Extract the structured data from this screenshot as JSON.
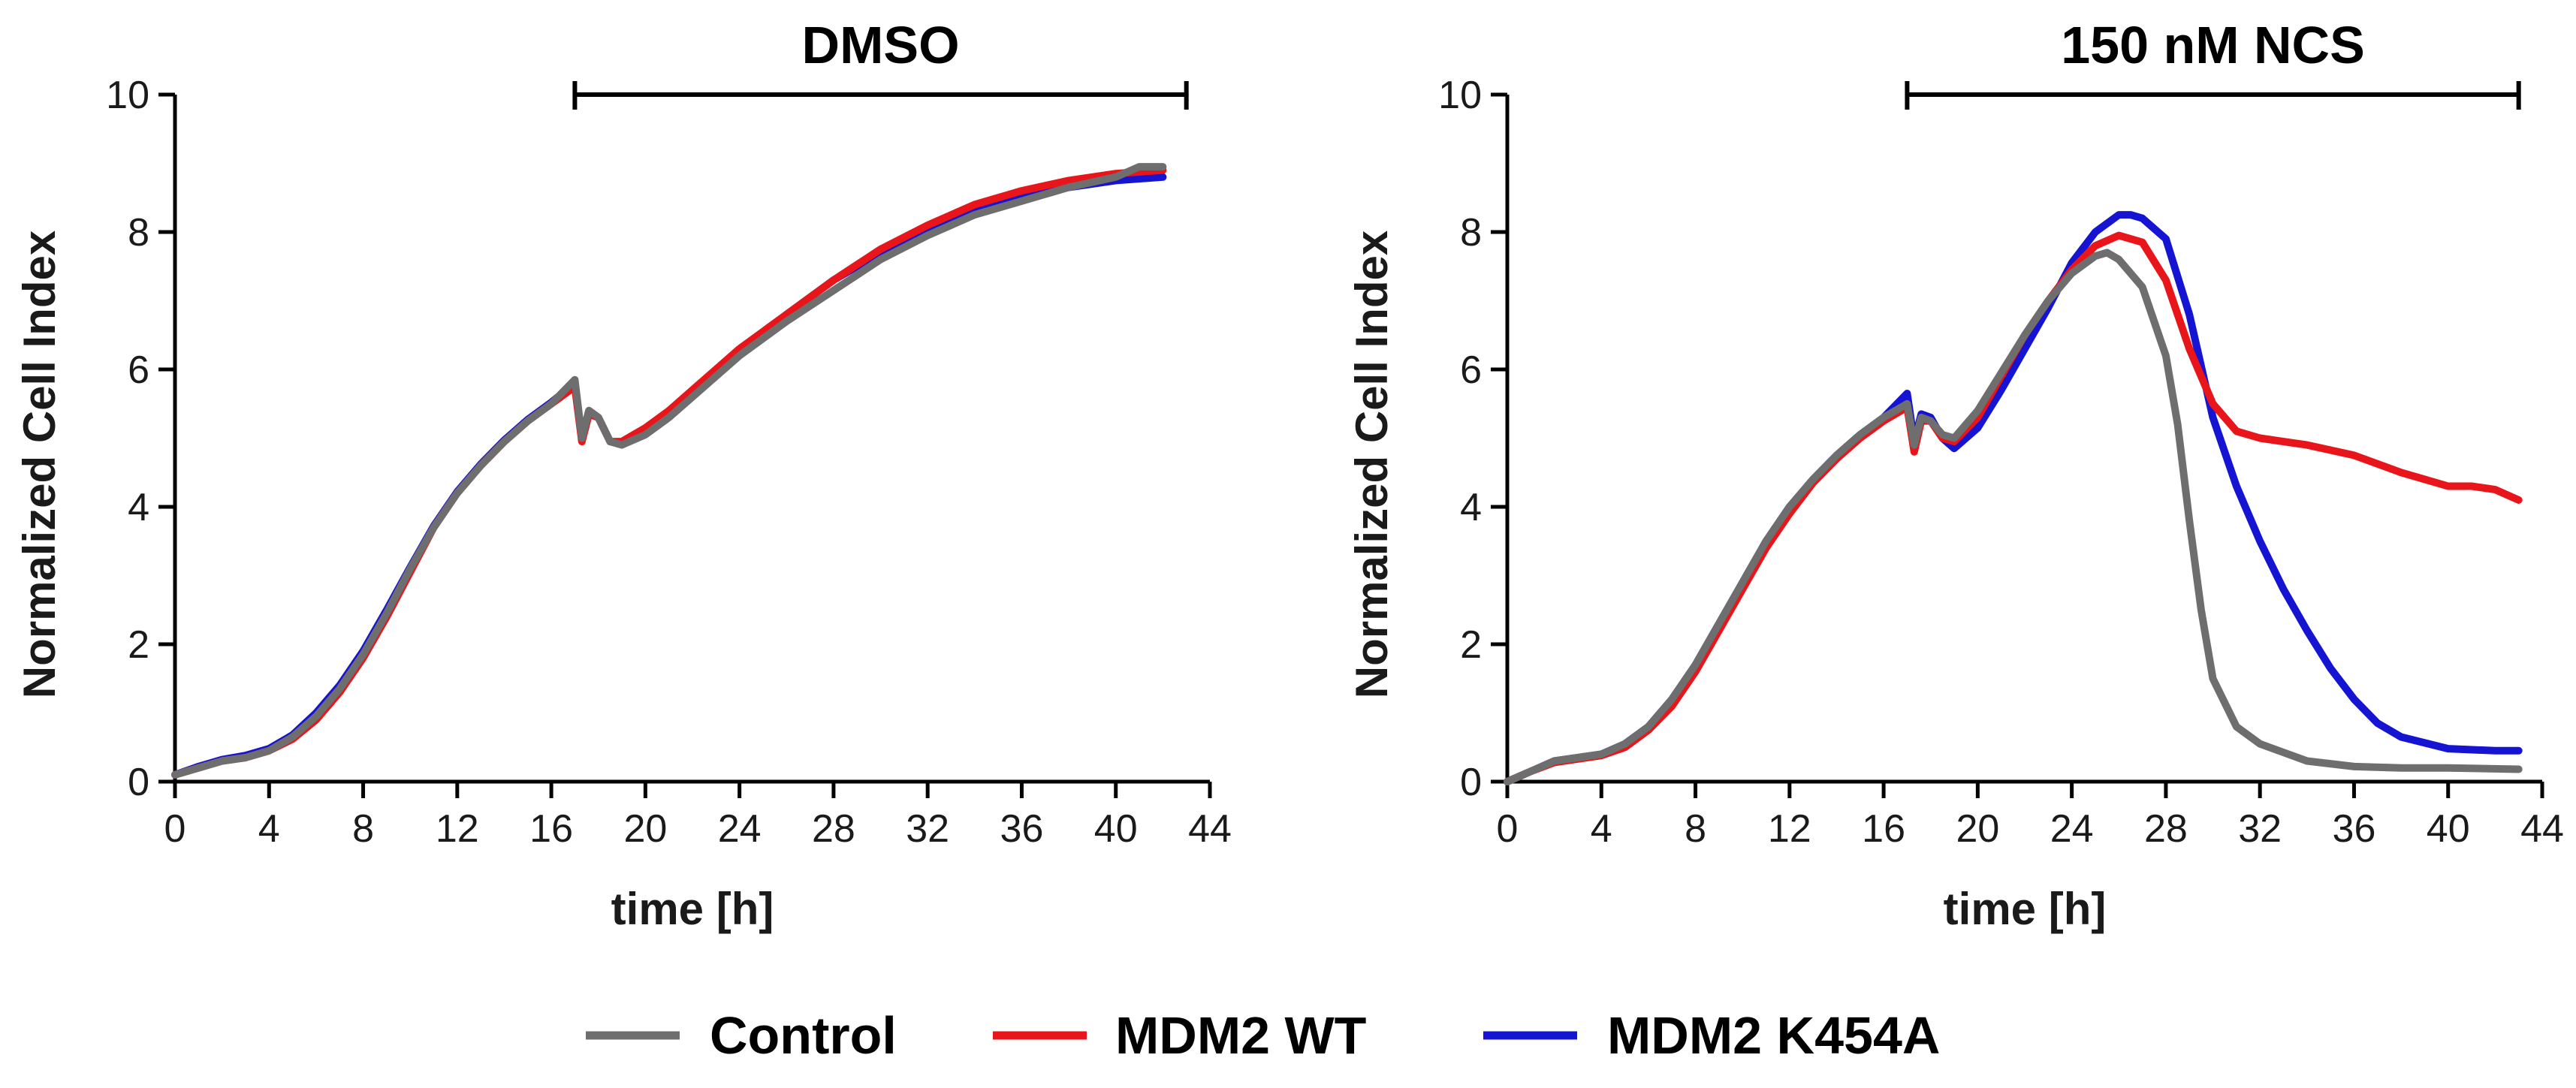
{
  "chart_data": [
    {
      "type": "line",
      "title": "DMSO",
      "xlabel": "time [h]",
      "ylabel": "Normalized Cell Index",
      "xlim": [
        0,
        44
      ],
      "ylim": [
        0,
        10
      ],
      "x_ticks": [
        0,
        4,
        8,
        12,
        16,
        20,
        24,
        28,
        32,
        36,
        40,
        44
      ],
      "y_ticks": [
        0,
        2,
        4,
        6,
        8,
        10
      ],
      "bracket": [
        17,
        43
      ],
      "grid": false,
      "series": [
        {
          "name": "Control",
          "color": "#6e6e6e",
          "points": [
            [
              0,
              0.1
            ],
            [
              1,
              0.2
            ],
            [
              2,
              0.3
            ],
            [
              3,
              0.35
            ],
            [
              4,
              0.45
            ],
            [
              5,
              0.65
            ],
            [
              6,
              0.95
            ],
            [
              7,
              1.35
            ],
            [
              8,
              1.85
            ],
            [
              9,
              2.45
            ],
            [
              10,
              3.1
            ],
            [
              11,
              3.7
            ],
            [
              12,
              4.2
            ],
            [
              13,
              4.6
            ],
            [
              14,
              4.95
            ],
            [
              15,
              5.25
            ],
            [
              16,
              5.5
            ],
            [
              17,
              5.85
            ],
            [
              17.3,
              5.0
            ],
            [
              17.6,
              5.4
            ],
            [
              18,
              5.3
            ],
            [
              18.5,
              4.95
            ],
            [
              19,
              4.9
            ],
            [
              20,
              5.05
            ],
            [
              21,
              5.3
            ],
            [
              22,
              5.6
            ],
            [
              24,
              6.2
            ],
            [
              26,
              6.7
            ],
            [
              28,
              7.15
            ],
            [
              30,
              7.6
            ],
            [
              32,
              7.95
            ],
            [
              34,
              8.25
            ],
            [
              36,
              8.45
            ],
            [
              38,
              8.65
            ],
            [
              40,
              8.8
            ],
            [
              41,
              8.95
            ],
            [
              42,
              8.95
            ]
          ]
        },
        {
          "name": "MDM2 WT",
          "color": "#e8151b",
          "points": [
            [
              0,
              0.1
            ],
            [
              1,
              0.2
            ],
            [
              2,
              0.3
            ],
            [
              3,
              0.35
            ],
            [
              4,
              0.45
            ],
            [
              5,
              0.62
            ],
            [
              6,
              0.9
            ],
            [
              7,
              1.3
            ],
            [
              8,
              1.8
            ],
            [
              9,
              2.4
            ],
            [
              10,
              3.05
            ],
            [
              11,
              3.7
            ],
            [
              12,
              4.2
            ],
            [
              13,
              4.6
            ],
            [
              14,
              4.95
            ],
            [
              15,
              5.25
            ],
            [
              16,
              5.5
            ],
            [
              17,
              5.75
            ],
            [
              17.3,
              4.95
            ],
            [
              17.6,
              5.35
            ],
            [
              18,
              5.3
            ],
            [
              18.5,
              4.95
            ],
            [
              19,
              4.95
            ],
            [
              20,
              5.15
            ],
            [
              21,
              5.4
            ],
            [
              22,
              5.7
            ],
            [
              24,
              6.3
            ],
            [
              26,
              6.8
            ],
            [
              28,
              7.3
            ],
            [
              30,
              7.75
            ],
            [
              32,
              8.1
            ],
            [
              34,
              8.4
            ],
            [
              36,
              8.6
            ],
            [
              38,
              8.75
            ],
            [
              40,
              8.85
            ],
            [
              42,
              8.9
            ]
          ]
        },
        {
          "name": "MDM2 K454A",
          "color": "#1414d2",
          "points": [
            [
              0,
              0.1
            ],
            [
              1,
              0.22
            ],
            [
              2,
              0.32
            ],
            [
              3,
              0.38
            ],
            [
              4,
              0.48
            ],
            [
              5,
              0.68
            ],
            [
              6,
              1.0
            ],
            [
              7,
              1.4
            ],
            [
              8,
              1.9
            ],
            [
              9,
              2.5
            ],
            [
              10,
              3.12
            ],
            [
              11,
              3.72
            ],
            [
              12,
              4.22
            ],
            [
              13,
              4.62
            ],
            [
              14,
              4.97
            ],
            [
              15,
              5.27
            ],
            [
              16,
              5.52
            ],
            [
              17,
              5.8
            ],
            [
              17.3,
              5.0
            ],
            [
              17.6,
              5.4
            ],
            [
              18,
              5.3
            ],
            [
              18.5,
              4.95
            ],
            [
              19,
              4.92
            ],
            [
              20,
              5.1
            ],
            [
              21,
              5.35
            ],
            [
              22,
              5.65
            ],
            [
              24,
              6.25
            ],
            [
              26,
              6.8
            ],
            [
              28,
              7.3
            ],
            [
              30,
              7.7
            ],
            [
              32,
              8.05
            ],
            [
              34,
              8.35
            ],
            [
              36,
              8.55
            ],
            [
              38,
              8.65
            ],
            [
              40,
              8.75
            ],
            [
              42,
              8.8
            ]
          ]
        }
      ]
    },
    {
      "type": "line",
      "title": "150 nM NCS",
      "xlabel": "time [h]",
      "ylabel": "Normalized Cell Index",
      "xlim": [
        0,
        44
      ],
      "ylim": [
        0,
        10
      ],
      "x_ticks": [
        0,
        4,
        8,
        12,
        16,
        20,
        24,
        28,
        32,
        36,
        40,
        44
      ],
      "y_ticks": [
        0,
        2,
        4,
        6,
        8,
        10
      ],
      "bracket": [
        17,
        43
      ],
      "grid": false,
      "series": [
        {
          "name": "Control",
          "color": "#6e6e6e",
          "points": [
            [
              0,
              0
            ],
            [
              1,
              0.15
            ],
            [
              2,
              0.3
            ],
            [
              3,
              0.35
            ],
            [
              4,
              0.4
            ],
            [
              5,
              0.55
            ],
            [
              6,
              0.8
            ],
            [
              7,
              1.2
            ],
            [
              8,
              1.7
            ],
            [
              9,
              2.3
            ],
            [
              10,
              2.9
            ],
            [
              11,
              3.5
            ],
            [
              12,
              4.0
            ],
            [
              13,
              4.4
            ],
            [
              14,
              4.75
            ],
            [
              15,
              5.05
            ],
            [
              16,
              5.3
            ],
            [
              17,
              5.5
            ],
            [
              17.3,
              4.9
            ],
            [
              17.6,
              5.3
            ],
            [
              18,
              5.25
            ],
            [
              18.5,
              5.05
            ],
            [
              19,
              5.0
            ],
            [
              20,
              5.4
            ],
            [
              21,
              5.95
            ],
            [
              22,
              6.5
            ],
            [
              23,
              7.0
            ],
            [
              24,
              7.4
            ],
            [
              25,
              7.65
            ],
            [
              25.5,
              7.7
            ],
            [
              26,
              7.6
            ],
            [
              27,
              7.2
            ],
            [
              28,
              6.2
            ],
            [
              28.5,
              5.2
            ],
            [
              29,
              3.8
            ],
            [
              29.5,
              2.5
            ],
            [
              30,
              1.5
            ],
            [
              31,
              0.8
            ],
            [
              32,
              0.55
            ],
            [
              34,
              0.3
            ],
            [
              36,
              0.22
            ],
            [
              38,
              0.2
            ],
            [
              40,
              0.2
            ],
            [
              43,
              0.18
            ]
          ]
        },
        {
          "name": "MDM2 WT",
          "color": "#e8151b",
          "points": [
            [
              0,
              0
            ],
            [
              1,
              0.15
            ],
            [
              2,
              0.28
            ],
            [
              3,
              0.33
            ],
            [
              4,
              0.38
            ],
            [
              5,
              0.5
            ],
            [
              6,
              0.75
            ],
            [
              7,
              1.1
            ],
            [
              8,
              1.6
            ],
            [
              9,
              2.2
            ],
            [
              10,
              2.8
            ],
            [
              11,
              3.4
            ],
            [
              12,
              3.9
            ],
            [
              13,
              4.35
            ],
            [
              14,
              4.7
            ],
            [
              15,
              5.0
            ],
            [
              16,
              5.25
            ],
            [
              17,
              5.45
            ],
            [
              17.3,
              4.8
            ],
            [
              17.6,
              5.25
            ],
            [
              18,
              5.25
            ],
            [
              18.5,
              5.0
            ],
            [
              19,
              4.95
            ],
            [
              20,
              5.3
            ],
            [
              21,
              5.9
            ],
            [
              22,
              6.5
            ],
            [
              23,
              7.0
            ],
            [
              24,
              7.45
            ],
            [
              25,
              7.8
            ],
            [
              26,
              7.95
            ],
            [
              27,
              7.85
            ],
            [
              28,
              7.3
            ],
            [
              29,
              6.3
            ],
            [
              30,
              5.5
            ],
            [
              31,
              5.1
            ],
            [
              32,
              5.0
            ],
            [
              34,
              4.9
            ],
            [
              36,
              4.75
            ],
            [
              38,
              4.5
            ],
            [
              40,
              4.3
            ],
            [
              41,
              4.3
            ],
            [
              42,
              4.25
            ],
            [
              43,
              4.1
            ]
          ]
        },
        {
          "name": "MDM2 K454A",
          "color": "#1414d2",
          "points": [
            [
              0,
              0
            ],
            [
              1,
              0.15
            ],
            [
              2,
              0.3
            ],
            [
              3,
              0.35
            ],
            [
              4,
              0.4
            ],
            [
              5,
              0.55
            ],
            [
              6,
              0.8
            ],
            [
              7,
              1.2
            ],
            [
              8,
              1.7
            ],
            [
              9,
              2.3
            ],
            [
              10,
              2.9
            ],
            [
              11,
              3.5
            ],
            [
              12,
              4.0
            ],
            [
              13,
              4.4
            ],
            [
              14,
              4.75
            ],
            [
              15,
              5.05
            ],
            [
              16,
              5.3
            ],
            [
              17,
              5.65
            ],
            [
              17.3,
              4.95
            ],
            [
              17.6,
              5.35
            ],
            [
              18,
              5.3
            ],
            [
              18.5,
              5.0
            ],
            [
              19,
              4.85
            ],
            [
              20,
              5.15
            ],
            [
              21,
              5.7
            ],
            [
              22,
              6.3
            ],
            [
              23,
              6.9
            ],
            [
              24,
              7.55
            ],
            [
              25,
              8.0
            ],
            [
              26,
              8.25
            ],
            [
              26.5,
              8.25
            ],
            [
              27,
              8.2
            ],
            [
              28,
              7.9
            ],
            [
              29,
              6.8
            ],
            [
              30,
              5.3
            ],
            [
              31,
              4.3
            ],
            [
              32,
              3.5
            ],
            [
              33,
              2.8
            ],
            [
              34,
              2.2
            ],
            [
              35,
              1.65
            ],
            [
              36,
              1.2
            ],
            [
              37,
              0.85
            ],
            [
              38,
              0.65
            ],
            [
              40,
              0.48
            ],
            [
              42,
              0.45
            ],
            [
              43,
              0.45
            ]
          ]
        }
      ]
    }
  ],
  "legend": {
    "entries": [
      {
        "label": "Control",
        "color": "#6e6e6e"
      },
      {
        "label": "MDM2 WT",
        "color": "#e8151b"
      },
      {
        "label": "MDM2 K454A",
        "color": "#1414d2"
      }
    ]
  }
}
